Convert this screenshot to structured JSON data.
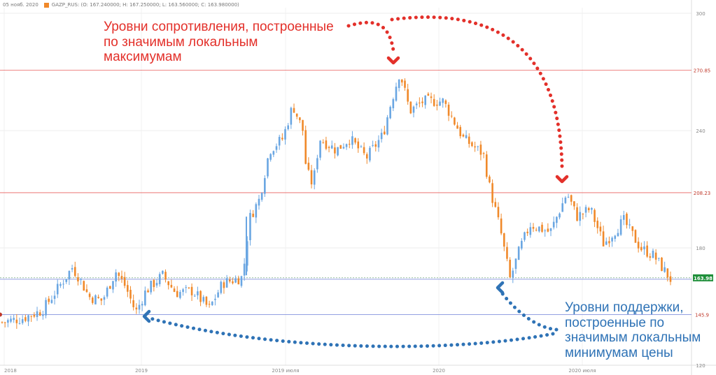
{
  "header": {
    "date": "05 нояб. 2020",
    "symbol_info": "GAZP_RUS: (O: 167.240000; H: 167.250000; L: 163.560000; C: 163.980000)"
  },
  "chart_data": {
    "type": "candlestick",
    "symbol": "GAZP_RUS",
    "ylim": [
      120,
      300
    ],
    "ytick_labels": [
      "300",
      "240",
      "180",
      "120"
    ],
    "x_labels": [
      "2018",
      "2019",
      "2019 июля",
      "2020",
      "2020 июля"
    ],
    "last_price": 163.98,
    "last_price_label": "163.98",
    "ohlc_last": {
      "open": 167.24,
      "high": 167.25,
      "low": 163.56,
      "close": 163.98
    },
    "resistance_levels": [
      {
        "value": 270.85,
        "label": "270.85"
      },
      {
        "value": 208.23,
        "label": "208.23"
      }
    ],
    "support_levels": [
      {
        "value": 163.98,
        "label": ""
      },
      {
        "value": 145.9,
        "label": "145.9"
      }
    ],
    "price_path": [
      {
        "t": 0.0,
        "p": 142
      },
      {
        "t": 0.03,
        "p": 144
      },
      {
        "t": 0.06,
        "p": 148
      },
      {
        "t": 0.085,
        "p": 160
      },
      {
        "t": 0.105,
        "p": 170
      },
      {
        "t": 0.115,
        "p": 165
      },
      {
        "t": 0.13,
        "p": 155
      },
      {
        "t": 0.15,
        "p": 153
      },
      {
        "t": 0.17,
        "p": 168
      },
      {
        "t": 0.185,
        "p": 160
      },
      {
        "t": 0.2,
        "p": 147
      },
      {
        "t": 0.215,
        "p": 158
      },
      {
        "t": 0.24,
        "p": 166
      },
      {
        "t": 0.26,
        "p": 157
      },
      {
        "t": 0.285,
        "p": 158
      },
      {
        "t": 0.31,
        "p": 149
      },
      {
        "t": 0.33,
        "p": 162
      },
      {
        "t": 0.36,
        "p": 165
      },
      {
        "t": 0.37,
        "p": 195
      },
      {
        "t": 0.385,
        "p": 205
      },
      {
        "t": 0.4,
        "p": 230
      },
      {
        "t": 0.42,
        "p": 236
      },
      {
        "t": 0.435,
        "p": 253
      },
      {
        "t": 0.45,
        "p": 240
      },
      {
        "t": 0.455,
        "p": 220
      },
      {
        "t": 0.465,
        "p": 212
      },
      {
        "t": 0.475,
        "p": 236
      },
      {
        "t": 0.5,
        "p": 230
      },
      {
        "t": 0.52,
        "p": 236
      },
      {
        "t": 0.545,
        "p": 226
      },
      {
        "t": 0.57,
        "p": 238
      },
      {
        "t": 0.58,
        "p": 252
      },
      {
        "t": 0.595,
        "p": 270
      },
      {
        "t": 0.61,
        "p": 250
      },
      {
        "t": 0.63,
        "p": 255
      },
      {
        "t": 0.66,
        "p": 255
      },
      {
        "t": 0.69,
        "p": 236
      },
      {
        "t": 0.72,
        "p": 228
      },
      {
        "t": 0.73,
        "p": 210
      },
      {
        "t": 0.745,
        "p": 190
      },
      {
        "t": 0.76,
        "p": 164
      },
      {
        "t": 0.775,
        "p": 180
      },
      {
        "t": 0.79,
        "p": 192
      },
      {
        "t": 0.82,
        "p": 188
      },
      {
        "t": 0.845,
        "p": 208
      },
      {
        "t": 0.86,
        "p": 196
      },
      {
        "t": 0.88,
        "p": 200
      },
      {
        "t": 0.9,
        "p": 182
      },
      {
        "t": 0.93,
        "p": 194
      },
      {
        "t": 0.955,
        "p": 180
      },
      {
        "t": 0.975,
        "p": 176
      },
      {
        "t": 1.0,
        "p": 164
      }
    ]
  },
  "annotations": {
    "resistance": "Уровни сопротивления, построенные\nпо значимым локальным\nмаксимумам",
    "support": "Уровни поддержки,\nпостроенные по\nзначимым локальным\nминимумам цены"
  },
  "colors": {
    "up_candle": "#6aa6e2",
    "down_candle": "#f0892a",
    "resistance_line": "#e8605f",
    "support_line": "#6f7fd8",
    "red_arrow": "#e3302a",
    "blue_arrow": "#2f73b6",
    "last_price_badge": "#1f8f3a"
  }
}
